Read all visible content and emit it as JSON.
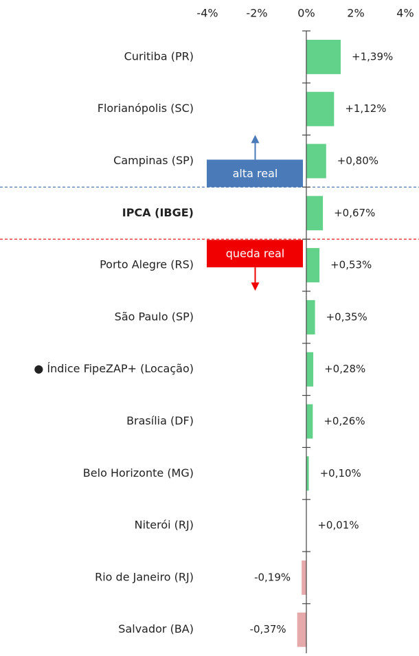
{
  "chart_data": {
    "type": "hbar",
    "categories": [
      "Curitiba (PR)",
      "Florianópolis (SC)",
      "Campinas (SP)",
      "IPCA (IBGE)",
      "Porto Alegre (RS)",
      "São Paulo (SP)",
      "● Índice FipeZAP+ (Locação)",
      "Brasília (DF)",
      "Belo Horizonte (MG)",
      "Niterói (RJ)",
      "Rio de Janeiro (RJ)",
      "Salvador (BA)"
    ],
    "values": [
      1.39,
      1.12,
      0.8,
      0.67,
      0.53,
      0.35,
      0.28,
      0.26,
      0.1,
      0.01,
      -0.19,
      -0.37
    ],
    "value_labels": [
      "+1,39%",
      "+1,12%",
      "+0,80%",
      "+0,67%",
      "+0,53%",
      "+0,35%",
      "+0,28%",
      "+0,26%",
      "+0,10%",
      "+0,01%",
      "-0,19%",
      "-0,37%"
    ],
    "color": "#62d18a",
    "negative_color": "#e6a9a9",
    "bold_category_index": 3,
    "xlim": [
      -4,
      4
    ],
    "xticks": [
      {
        "value": -4,
        "label": "-4%"
      },
      {
        "value": -2,
        "label": "-2%"
      },
      {
        "value": 0,
        "label": "0%"
      },
      {
        "value": 2,
        "label": "2%"
      },
      {
        "value": 4,
        "label": "4%"
      }
    ],
    "annotations": [
      {
        "text": "alta real",
        "color": "#4a7ab8",
        "direction": "up"
      },
      {
        "text": "queda real",
        "color": "#f00000",
        "direction": "down"
      }
    ]
  }
}
